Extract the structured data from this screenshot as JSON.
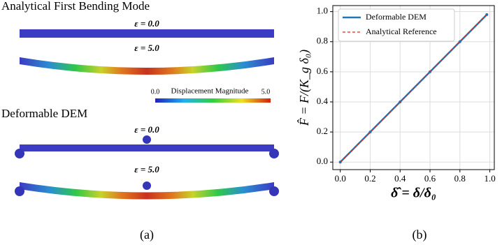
{
  "panel_a": {
    "title_analytical": "Analytical First Bending Mode",
    "eps_a1": "ε = 0.0",
    "eps_a2": "ε = 5.0",
    "colorbar": {
      "min_label": "0.0",
      "title": "Displacement Magnitude",
      "max_label": "5.0"
    },
    "title_dem": "Deformable DEM",
    "eps_d1": "ε = 0.0",
    "eps_d2": "ε = 5.0",
    "caption": "(a)"
  },
  "caption_b": "(b)",
  "chart_data": {
    "type": "line",
    "xlabel": "δ̂ = δ/δ₀",
    "ylabel": "F̂ = F/(K_g δ₀)",
    "x": [
      0,
      0.2,
      0.4,
      0.6,
      0.8,
      0.98
    ],
    "series": [
      {
        "name": "Deformable DEM",
        "color": "#1f77b4",
        "values": [
          0,
          0.2,
          0.4,
          0.6,
          0.8,
          0.98
        ]
      },
      {
        "name": "Analytical Reference",
        "color": "#e3261f",
        "values": [
          0,
          0.2,
          0.4,
          0.6,
          0.8,
          0.98
        ]
      }
    ],
    "xlim": [
      -0.05,
      1.03
    ],
    "ylim": [
      -0.05,
      1.04
    ],
    "xticks": [
      {
        "value": 0,
        "label": "0.0"
      },
      0.2,
      0.4,
      0.6,
      0.8,
      {
        "value": 1,
        "label": "1.0"
      }
    ],
    "yticks": [
      {
        "value": 0,
        "label": "0.0"
      },
      0.2,
      0.4,
      0.6,
      0.8,
      {
        "value": 1,
        "label": "1.0"
      }
    ],
    "grid": true,
    "legend": "upper-left"
  }
}
